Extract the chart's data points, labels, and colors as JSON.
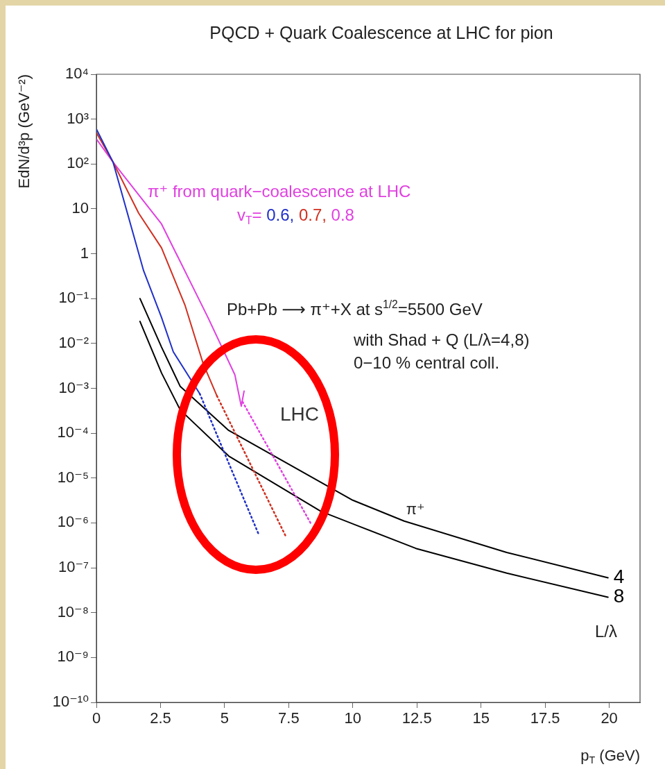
{
  "chart_data": {
    "type": "line",
    "title": "PQCD + Quark Coalescence at LHC for pion",
    "xlabel": "p$_{T}$ (GeV)",
    "ylabel": "EdN/d³p (GeV⁻²)",
    "log": "y",
    "grid": false,
    "legend": false,
    "marker": "none",
    "xlim": [
      0,
      21.2
    ],
    "xticks": [
      0,
      2.5,
      5,
      7.5,
      10,
      12.5,
      15,
      17.5,
      20
    ],
    "ylim": [
      1e-10,
      10000
    ],
    "yticks": [
      {
        "value": 1e-10,
        "label": "10⁻¹⁰"
      },
      {
        "value": 1e-09,
        "label": "10⁻⁹"
      },
      {
        "value": 1e-08,
        "label": "10⁻⁸"
      },
      {
        "value": 1e-07,
        "label": "10⁻⁷"
      },
      {
        "value": 1e-06,
        "label": "10⁻⁶"
      },
      {
        "value": 1e-05,
        "label": "10⁻⁵"
      },
      {
        "value": 0.0001,
        "label": "10⁻⁴"
      },
      {
        "value": 0.001,
        "label": "10⁻³"
      },
      {
        "value": 0.01,
        "label": "10⁻²"
      },
      {
        "value": 0.1,
        "label": "10⁻¹"
      },
      1,
      10,
      {
        "value": 100,
        "label": "10²"
      },
      {
        "value": 1000,
        "label": "10³"
      },
      {
        "value": 10000,
        "label": "10⁴"
      }
    ],
    "series": [
      {
        "color": "#2030c8",
        "line_style": "solid",
        "x": [
          0,
          0.65,
          1.84,
          2.54,
          3.0,
          4.03
        ],
        "values": [
          600,
          110,
          0.42,
          0.038,
          0.0065,
          0.00076
        ]
      },
      {
        "color": "#2030c8",
        "line_style": "dotted",
        "x": [
          4.03,
          5.2,
          6.35
        ],
        "values": [
          0.00076,
          1.9e-05,
          5.2e-07
        ]
      },
      {
        "color": "#d03020",
        "line_style": "solid",
        "x": [
          0,
          0.65,
          1.65,
          2.54,
          3.46,
          4.16,
          4.7
        ],
        "values": [
          500,
          110,
          8,
          1.35,
          0.07,
          0.0036,
          0.00068
        ]
      },
      {
        "color": "#d03020",
        "line_style": "dotted",
        "x": [
          4.7,
          7.38
        ],
        "values": [
          0.00068,
          5.1e-07
        ]
      },
      {
        "color": "#e040e0",
        "line_style": "solid",
        "x": [
          0,
          0.65,
          2.54,
          4.35,
          5.4,
          5.65,
          5.76
        ],
        "values": [
          360,
          110,
          4.6,
          0.038,
          0.002,
          0.0004,
          0.00087
        ]
      },
      {
        "color": "#e040e0",
        "line_style": "dotted",
        "x": [
          5.7,
          8.35
        ],
        "values": [
          0.0005,
          1e-06
        ]
      },
      {
        "name": "4",
        "color": "#000000",
        "line_style": "solid",
        "x": [
          1.7,
          2.54,
          3.27,
          5.16,
          10,
          12,
          16,
          19.95
        ],
        "values": [
          0.1,
          0.0083,
          0.0011,
          0.000115,
          3.2e-06,
          1.1e-06,
          2.2e-07,
          6e-08
        ]
      },
      {
        "name": "8",
        "color": "#000000",
        "line_style": "solid",
        "x": [
          1.7,
          2.54,
          3.27,
          5.16,
          8.76,
          12.46,
          16,
          19.95
        ],
        "values": [
          0.031,
          0.0022,
          0.00033,
          3.1e-05,
          1.8e-06,
          2.7e-07,
          7.6e-08,
          2.2e-08
        ]
      }
    ],
    "annotations": [
      "π⁺ from quark−coalescence at LHC",
      "v$_{T}$= 0.6, 0.7, 0.8",
      "Pb+Pb ⟶ π⁺+X at s$^{1/2}$=5500 GeV",
      "with Shad + Q (L/λ=4,8)",
      "0−10 % central coll.",
      "LHC",
      {
        "text": "π⁺",
        "x": 12.3,
        "y": 1e-06
      },
      "L/λ"
    ]
  }
}
